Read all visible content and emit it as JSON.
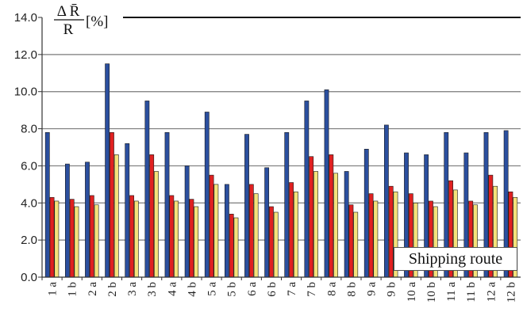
{
  "chart_data": {
    "type": "bar",
    "ylabel": {
      "numerator": "Δ R̄",
      "denominator": "R",
      "unit": "[%]"
    },
    "xlabel": "Shipping route",
    "ylim": [
      0,
      14
    ],
    "yticks": [
      "0.0",
      "2.0",
      "4.0",
      "6.0",
      "8.0",
      "10.0",
      "12.0",
      "14.0"
    ],
    "grid": true,
    "categories": [
      "1 a",
      "1 b",
      "2 a",
      "2 b",
      "3 a",
      "3 b",
      "4 a",
      "4 b",
      "5 a",
      "5 b",
      "6 a",
      "6 b",
      "7 a",
      "7 b",
      "8 a",
      "8 b",
      "9 a",
      "9 b",
      "10 a",
      "10 b",
      "11 a",
      "11 b",
      "12 a",
      "12 b"
    ],
    "series": [
      {
        "color": "#2b4f9e",
        "values": [
          7.8,
          6.1,
          6.2,
          11.5,
          7.2,
          9.5,
          7.8,
          6.0,
          8.9,
          5.0,
          7.7,
          5.9,
          7.8,
          9.5,
          10.1,
          5.7,
          6.9,
          8.2,
          6.7,
          6.6,
          7.8,
          6.7,
          7.8,
          7.9
        ]
      },
      {
        "color": "#e02020",
        "values": [
          4.3,
          4.2,
          4.4,
          7.8,
          4.4,
          6.6,
          4.4,
          4.2,
          5.5,
          3.4,
          5.0,
          3.8,
          5.1,
          6.5,
          6.6,
          3.9,
          4.5,
          4.9,
          4.5,
          4.1,
          5.2,
          4.1,
          5.5,
          4.6
        ]
      },
      {
        "color": "#f5e27a",
        "values": [
          4.1,
          3.8,
          3.9,
          6.6,
          4.1,
          5.7,
          4.1,
          3.8,
          5.0,
          3.2,
          4.5,
          3.5,
          4.6,
          5.7,
          5.6,
          3.5,
          4.1,
          4.6,
          4.0,
          3.8,
          4.7,
          3.9,
          4.9,
          4.3
        ]
      }
    ]
  }
}
